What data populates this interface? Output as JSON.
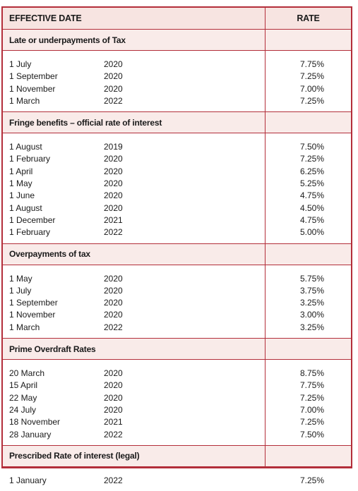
{
  "header": {
    "effective_date": "EFFECTIVE DATE",
    "rate": "RATE"
  },
  "sections": [
    {
      "title": "Late or underpayments of Tax",
      "rows": [
        {
          "date": "1 July",
          "year": "2020",
          "rate": "7.75%"
        },
        {
          "date": "1 September",
          "year": "2020",
          "rate": "7.25%"
        },
        {
          "date": "1 November",
          "year": "2020",
          "rate": "7.00%"
        },
        {
          "date": "1 March",
          "year": "2022",
          "rate": "7.25%"
        }
      ]
    },
    {
      "title": "Fringe benefits – official rate of interest",
      "rows": [
        {
          "date": "1 August",
          "year": "2019",
          "rate": "7.50%"
        },
        {
          "date": "1 February",
          "year": "2020",
          "rate": "7.25%"
        },
        {
          "date": "1 April",
          "year": "2020",
          "rate": "6.25%"
        },
        {
          "date": "1 May",
          "year": "2020",
          "rate": "5.25%"
        },
        {
          "date": "1 June",
          "year": "2020",
          "rate": "4.75%"
        },
        {
          "date": "1 August",
          "year": "2020",
          "rate": "4.50%"
        },
        {
          "date": "1 December",
          "year": "2021",
          "rate": "4.75%"
        },
        {
          "date": "1 February",
          "year": "2022",
          "rate": "5.00%"
        }
      ]
    },
    {
      "title": "Overpayments of tax",
      "rows": [
        {
          "date": "1 May",
          "year": "2020",
          "rate": "5.75%"
        },
        {
          "date": "1 July",
          "year": "2020",
          "rate": "3.75%"
        },
        {
          "date": "1 September",
          "year": "2020",
          "rate": "3.25%"
        },
        {
          "date": "1 November",
          "year": "2020",
          "rate": "3.00%"
        },
        {
          "date": "1 March",
          "year": "2022",
          "rate": "3.25%"
        }
      ]
    },
    {
      "title": "Prime Overdraft Rates",
      "rows": [
        {
          "date": "20 March",
          "year": "2020",
          "rate": "8.75%"
        },
        {
          "date": "15 April",
          "year": "2020",
          "rate": "7.75%"
        },
        {
          "date": "22 May",
          "year": "2020",
          "rate": "7.25%"
        },
        {
          "date": "24 July",
          "year": "2020",
          "rate": "7.00%"
        },
        {
          "date": "18 November",
          "year": "2021",
          "rate": "7.25%"
        },
        {
          "date": "28 January",
          "year": "2022",
          "rate": "7.50%"
        }
      ]
    },
    {
      "title": "Prescribed Rate of interest (legal)",
      "rows": [
        {
          "date": "1 January",
          "year": "2022",
          "rate": "7.25%"
        }
      ]
    }
  ]
}
